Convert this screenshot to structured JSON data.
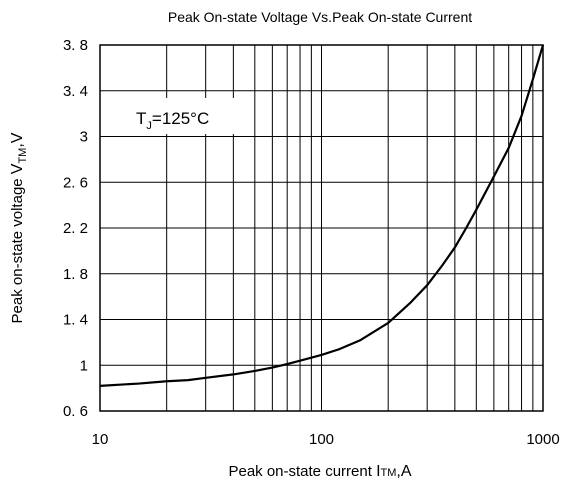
{
  "chart_data": {
    "type": "line",
    "title": "Peak On-state Voltage Vs.Peak On-state Current",
    "xlabel": {
      "main": "Peak on-state current",
      "sym": "I",
      "sub": "TM",
      "unit": ",A"
    },
    "ylabel": {
      "main": "Peak on-state voltage",
      "sym": "V",
      "sub": "TM",
      "unit": ",V"
    },
    "x_scale": "log",
    "xlim": [
      10,
      1000
    ],
    "ylim": [
      0.6,
      3.8
    ],
    "grid": true,
    "x_ticks": [
      {
        "value": 10,
        "label": "10"
      },
      {
        "value": 100,
        "label": "100"
      },
      {
        "value": 1000,
        "label": "1000"
      }
    ],
    "y_ticks": [
      {
        "value": 0.6,
        "label": "0. 6"
      },
      {
        "value": 1.0,
        "label": "1"
      },
      {
        "value": 1.4,
        "label": "1. 4"
      },
      {
        "value": 1.8,
        "label": "1. 8"
      },
      {
        "value": 2.2,
        "label": "2. 2"
      },
      {
        "value": 2.6,
        "label": "2. 6"
      },
      {
        "value": 3.0,
        "label": "3"
      },
      {
        "value": 3.4,
        "label": "3. 4"
      },
      {
        "value": 3.8,
        "label": "3. 8"
      }
    ],
    "annotation": {
      "pre": "T",
      "sub": "J",
      "post": "=125°C"
    },
    "series": [
      {
        "x": [
          10,
          15,
          20,
          25,
          30,
          40,
          50,
          60,
          70,
          80,
          100,
          120,
          150,
          200,
          250,
          300,
          350,
          400,
          450,
          500,
          600,
          700,
          800,
          900,
          1000
        ],
        "y": [
          0.82,
          0.84,
          0.86,
          0.87,
          0.89,
          0.92,
          0.95,
          0.98,
          1.01,
          1.04,
          1.09,
          1.14,
          1.22,
          1.37,
          1.54,
          1.7,
          1.87,
          2.03,
          2.2,
          2.36,
          2.65,
          2.9,
          3.18,
          3.5,
          3.8
        ]
      }
    ]
  }
}
